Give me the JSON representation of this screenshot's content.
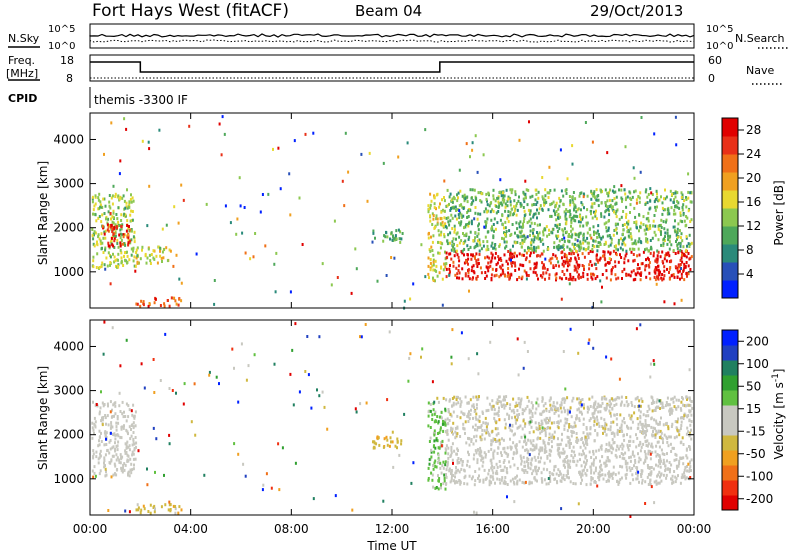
{
  "header": {
    "title": "Fort Hays West (fitACF)",
    "beam": "Beam 04",
    "date": "29/Oct/2013"
  },
  "noise_panel": {
    "left_label": "N.Sky",
    "right_label": "N.Search",
    "left_ticks": [
      "10^5",
      "10^0"
    ],
    "right_ticks": [
      "10^5",
      "10^0"
    ]
  },
  "freq_panel": {
    "left_label_1": "Freq.",
    "left_label_2": "[MHz]",
    "right_label": "Nave",
    "left_ticks": [
      "18",
      "8"
    ],
    "right_ticks": [
      "60",
      "0"
    ]
  },
  "cpid": {
    "label": "CPID",
    "text": "themis -3300 IF"
  },
  "chart_data": [
    {
      "type": "heatmap",
      "quantity": "Power",
      "xlabel": "Time UT",
      "ylabel": "Slant Range [km]",
      "x_ticks": [
        "00:00",
        "04:00",
        "08:00",
        "12:00",
        "16:00",
        "20:00",
        "00:00"
      ],
      "xlim_hours": [
        0,
        24
      ],
      "y_ticks": [
        1000,
        2000,
        3000,
        4000
      ],
      "ylim": [
        180,
        4600
      ],
      "colorbar": {
        "label": "Power [dB]",
        "ticks": [
          "4",
          "8",
          "12",
          "16",
          "20",
          "24",
          "28"
        ],
        "range": [
          0,
          30
        ],
        "colors": [
          "#0020ff",
          "#2850b8",
          "#2a8a7a",
          "#4ea85a",
          "#8cc850",
          "#e8d830",
          "#f0a020",
          "#f07018",
          "#e83018",
          "#e00000"
        ]
      },
      "regions": [
        {
          "t": [
            0.05,
            1.8
          ],
          "r": [
            1100,
            2800
          ],
          "level": 14
        },
        {
          "t": [
            0.4,
            1.6
          ],
          "r": [
            1600,
            2100
          ],
          "level": 27
        },
        {
          "t": [
            1.8,
            3.2
          ],
          "r": [
            1200,
            1600
          ],
          "level": 16
        },
        {
          "t": [
            1.8,
            3.6
          ],
          "r": [
            250,
            450
          ],
          "level": 24
        },
        {
          "t": [
            11.2,
            12.4
          ],
          "r": [
            1700,
            2000
          ],
          "level": 10
        },
        {
          "t": [
            13.4,
            14.1
          ],
          "r": [
            800,
            2800
          ],
          "level": 16
        },
        {
          "t": [
            14.1,
            23.9
          ],
          "r": [
            850,
            1500
          ],
          "level": 27
        },
        {
          "t": [
            14.1,
            23.9
          ],
          "r": [
            1500,
            2900
          ],
          "level": 12
        }
      ]
    },
    {
      "type": "heatmap",
      "quantity": "Velocity",
      "xlabel": "Time UT",
      "ylabel": "Slant Range [km]",
      "x_ticks": [
        "00:00",
        "04:00",
        "08:00",
        "12:00",
        "16:00",
        "20:00",
        "00:00"
      ],
      "xlim_hours": [
        0,
        24
      ],
      "y_ticks": [
        1000,
        2000,
        3000,
        4000
      ],
      "ylim": [
        180,
        4600
      ],
      "colorbar": {
        "label": "Velocity [m s^-1]",
        "ticks": [
          "200",
          "100",
          "50",
          "15",
          "-15",
          "-50",
          "-100",
          "-200"
        ],
        "range": [
          -250,
          250
        ],
        "colors": [
          "#e00000",
          "#f03010",
          "#f07018",
          "#f0a020",
          "#d0b840",
          "#c8c8c0",
          "#c8c8c0",
          "#60c040",
          "#30a030",
          "#208060",
          "#2040c0",
          "#0020ff"
        ]
      },
      "regions": [
        {
          "t": [
            0.05,
            1.8
          ],
          "r": [
            1100,
            2800
          ],
          "level": 0
        },
        {
          "t": [
            1.8,
            3.6
          ],
          "r": [
            250,
            450
          ],
          "level": -60
        },
        {
          "t": [
            11.2,
            12.4
          ],
          "r": [
            1700,
            2000
          ],
          "level": -80
        },
        {
          "t": [
            13.4,
            14.1
          ],
          "r": [
            800,
            2800
          ],
          "level": 60
        },
        {
          "t": [
            14.1,
            23.9
          ],
          "r": [
            900,
            1900
          ],
          "level": 0
        },
        {
          "t": [
            14.1,
            23.9
          ],
          "r": [
            1900,
            2900
          ],
          "level": -20
        }
      ]
    }
  ]
}
